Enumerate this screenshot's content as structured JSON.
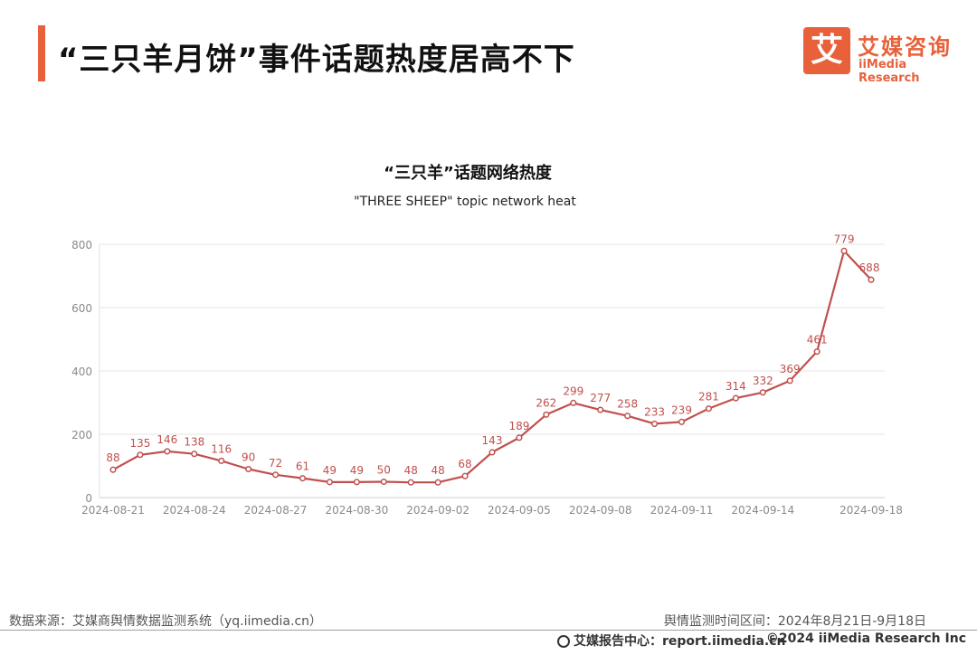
{
  "header": {
    "title": "“三只羊月饼”事件话题热度居高不下",
    "logo_mark": "艾",
    "logo_cn": "艾媒咨询",
    "logo_en": "iiMedia Research"
  },
  "chart_data": {
    "type": "line",
    "title": "“三只羊”话题网络热度",
    "subtitle": "\"THREE SHEEP\" topic network heat",
    "x": [
      "2024-08-21",
      "2024-08-22",
      "2024-08-23",
      "2024-08-24",
      "2024-08-25",
      "2024-08-26",
      "2024-08-27",
      "2024-08-28",
      "2024-08-29",
      "2024-08-30",
      "2024-08-31",
      "2024-09-01",
      "2024-09-02",
      "2024-09-03",
      "2024-09-04",
      "2024-09-05",
      "2024-09-06",
      "2024-09-07",
      "2024-09-08",
      "2024-09-09",
      "2024-09-10",
      "2024-09-11",
      "2024-09-12",
      "2024-09-13",
      "2024-09-14",
      "2024-09-15",
      "2024-09-16",
      "2024-09-17",
      "2024-09-18"
    ],
    "xticks": [
      "2024-08-21",
      "2024-08-24",
      "2024-08-27",
      "2024-08-30",
      "2024-09-02",
      "2024-09-05",
      "2024-09-08",
      "2024-09-11",
      "2024-09-14",
      "2024-09-18"
    ],
    "values": [
      88,
      135,
      146,
      138,
      116,
      90,
      72,
      61,
      49,
      49,
      50,
      48,
      48,
      68,
      143,
      189,
      262,
      299,
      277,
      258,
      233,
      239,
      281,
      314,
      332,
      369,
      461,
      779,
      688
    ],
    "ylim": [
      0,
      800
    ],
    "yticks": [
      0,
      200,
      400,
      600,
      800
    ],
    "grid": true,
    "color": "#c0504d"
  },
  "footer": {
    "source": "数据来源：艾媒商舆情数据监测系统（yq.iimedia.cn）",
    "range": "舆情监测时间区间：2024年8月21日-9月18日",
    "report": "艾媒报告中心：report.iimedia.cn",
    "copyright": "©2024  iiMedia Research  Inc"
  }
}
